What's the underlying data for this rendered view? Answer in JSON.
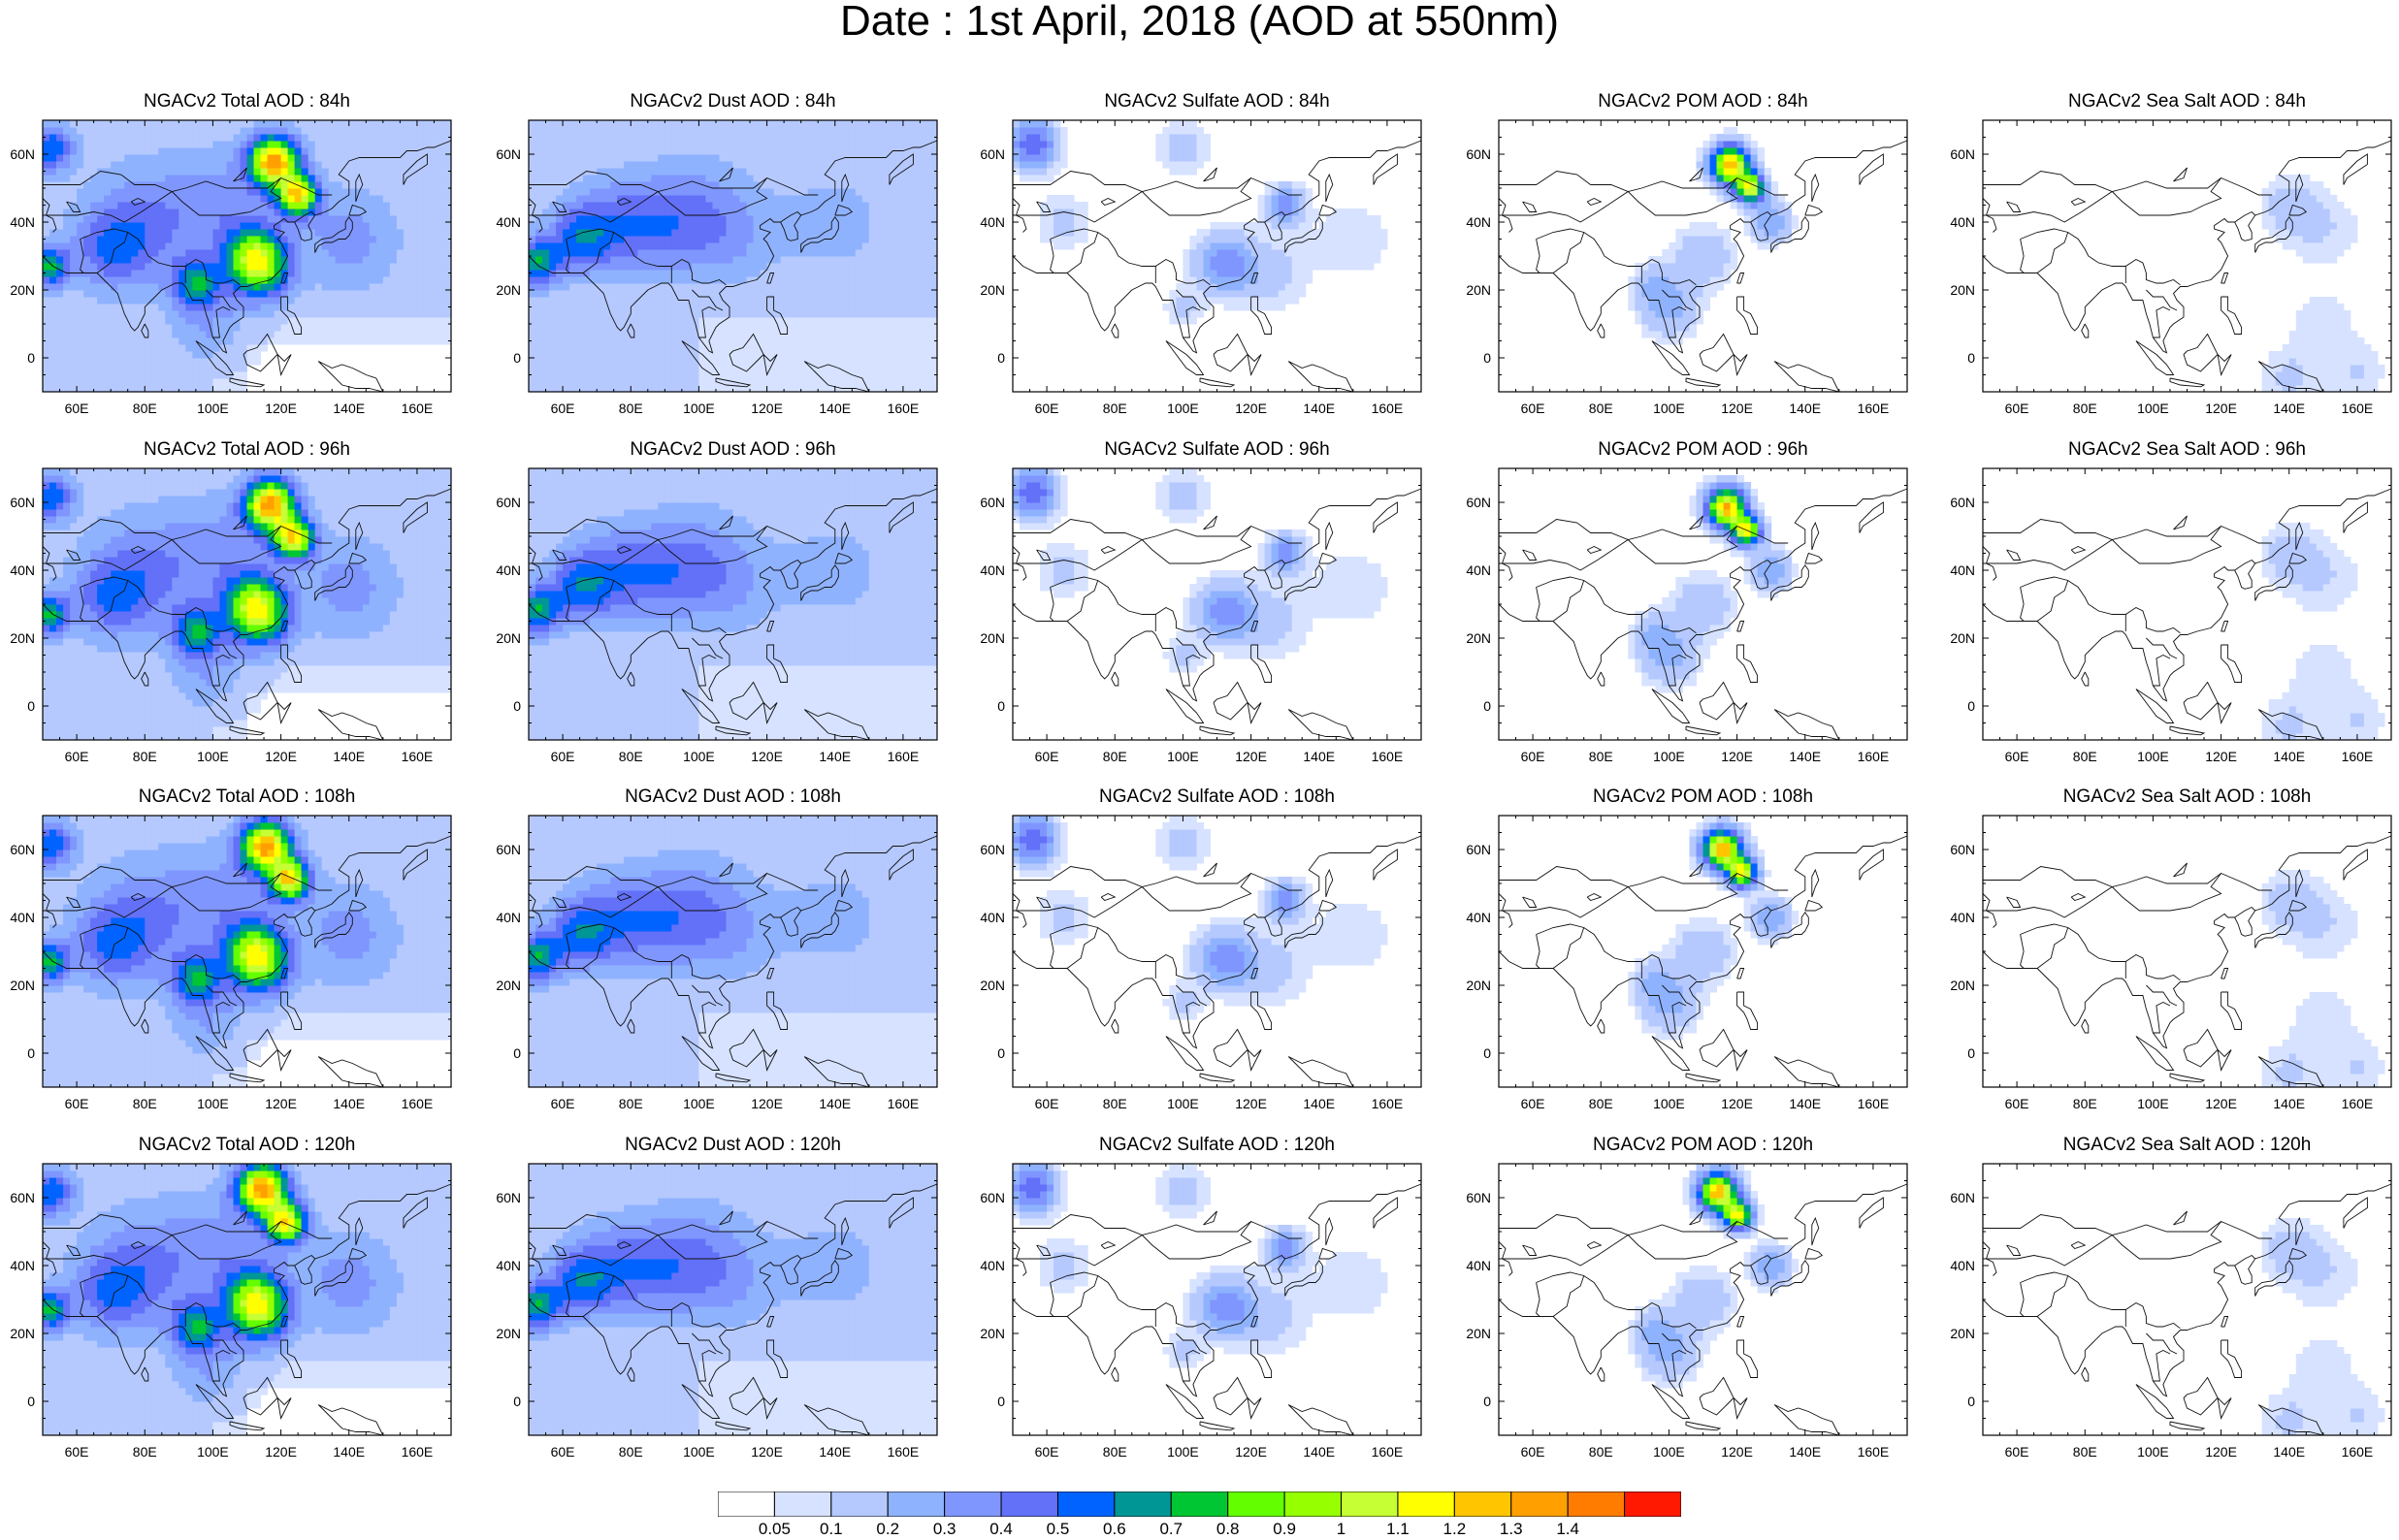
{
  "title": "Date : 1st April, 2018 (AOD at 550nm)",
  "panels": [
    {
      "title": "NGACv2 Total AOD : 84h",
      "species": "total",
      "hour": 84
    },
    {
      "title": "NGACv2 Dust AOD : 84h",
      "species": "dust",
      "hour": 84
    },
    {
      "title": "NGACv2 Sulfate AOD : 84h",
      "species": "sulfate",
      "hour": 84
    },
    {
      "title": "NGACv2 POM AOD : 84h",
      "species": "pom",
      "hour": 84
    },
    {
      "title": "NGACv2 Sea Salt AOD : 84h",
      "species": "seasalt",
      "hour": 84
    },
    {
      "title": "NGACv2 Total AOD : 96h",
      "species": "total",
      "hour": 96
    },
    {
      "title": "NGACv2 Dust AOD : 96h",
      "species": "dust",
      "hour": 96
    },
    {
      "title": "NGACv2 Sulfate AOD : 96h",
      "species": "sulfate",
      "hour": 96
    },
    {
      "title": "NGACv2 POM AOD : 96h",
      "species": "pom",
      "hour": 96
    },
    {
      "title": "NGACv2 Sea Salt AOD : 96h",
      "species": "seasalt",
      "hour": 96
    },
    {
      "title": "NGACv2 Total AOD : 108h",
      "species": "total",
      "hour": 108
    },
    {
      "title": "NGACv2 Dust AOD : 108h",
      "species": "dust",
      "hour": 108
    },
    {
      "title": "NGACv2 Sulfate AOD : 108h",
      "species": "sulfate",
      "hour": 108
    },
    {
      "title": "NGACv2 POM AOD : 108h",
      "species": "pom",
      "hour": 108
    },
    {
      "title": "NGACv2 Sea Salt AOD : 108h",
      "species": "seasalt",
      "hour": 108
    },
    {
      "title": "NGACv2 Total AOD : 120h",
      "species": "total",
      "hour": 120
    },
    {
      "title": "NGACv2 Dust AOD : 120h",
      "species": "dust",
      "hour": 120
    },
    {
      "title": "NGACv2 Sulfate AOD : 120h",
      "species": "sulfate",
      "hour": 120
    },
    {
      "title": "NGACv2 POM AOD : 120h",
      "species": "pom",
      "hour": 120
    },
    {
      "title": "NGACv2 Sea Salt  AOD : 120h",
      "species": "seasalt",
      "hour": 120
    }
  ],
  "map": {
    "lon_range": [
      50,
      170
    ],
    "lat_range": [
      -10,
      70
    ],
    "lon_ticks": [
      60,
      80,
      100,
      120,
      140,
      160
    ],
    "lon_tick_labels": [
      "60E",
      "80E",
      "100E",
      "120E",
      "140E",
      "160E"
    ],
    "lat_ticks": [
      0,
      20,
      40,
      60
    ],
    "lat_tick_labels": [
      "0",
      "20N",
      "40N",
      "60N"
    ]
  },
  "colorbar": {
    "labels": [
      "0.05",
      "0.1",
      "0.2",
      "0.3",
      "0.4",
      "0.5",
      "0.6",
      "0.7",
      "0.8",
      "0.9",
      "1",
      "1.1",
      "1.2",
      "1.3",
      "1.4"
    ],
    "colors": [
      "#ffffff",
      "#d6e2ff",
      "#b5c9ff",
      "#8fb2ff",
      "#7f96ff",
      "#6370f8",
      "#0063ff",
      "#009696",
      "#00c633",
      "#63ff00",
      "#96ff00",
      "#c6ff33",
      "#ffff00",
      "#ffc600",
      "#ffa000",
      "#ff7c00",
      "#ff1900"
    ]
  }
}
